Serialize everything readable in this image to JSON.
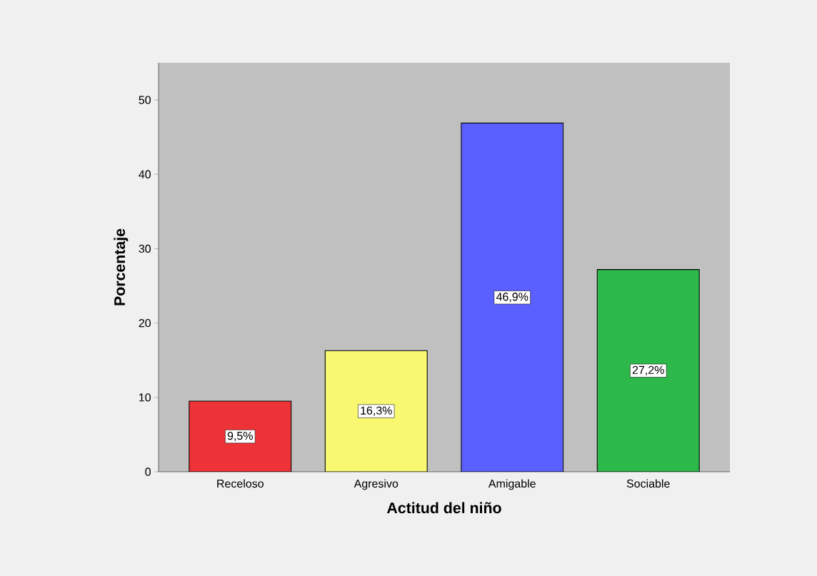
{
  "chart_data": {
    "type": "bar",
    "xlabel": "Actitud del niño",
    "ylabel": "Porcentaje",
    "categories": [
      "Receloso",
      "Agresivo",
      "Amigable",
      "Sociable"
    ],
    "values": [
      9.5,
      16.3,
      46.9,
      27.2
    ],
    "colors": [
      "#ee3338",
      "#f9f871",
      "#5a5fff",
      "#2db84a"
    ],
    "value_labels": [
      "9,5%",
      "16,3%",
      "46,9%",
      "27,2%"
    ],
    "ylim": [
      0,
      55
    ],
    "yticks": [
      0,
      10,
      20,
      30,
      40,
      50
    ]
  }
}
